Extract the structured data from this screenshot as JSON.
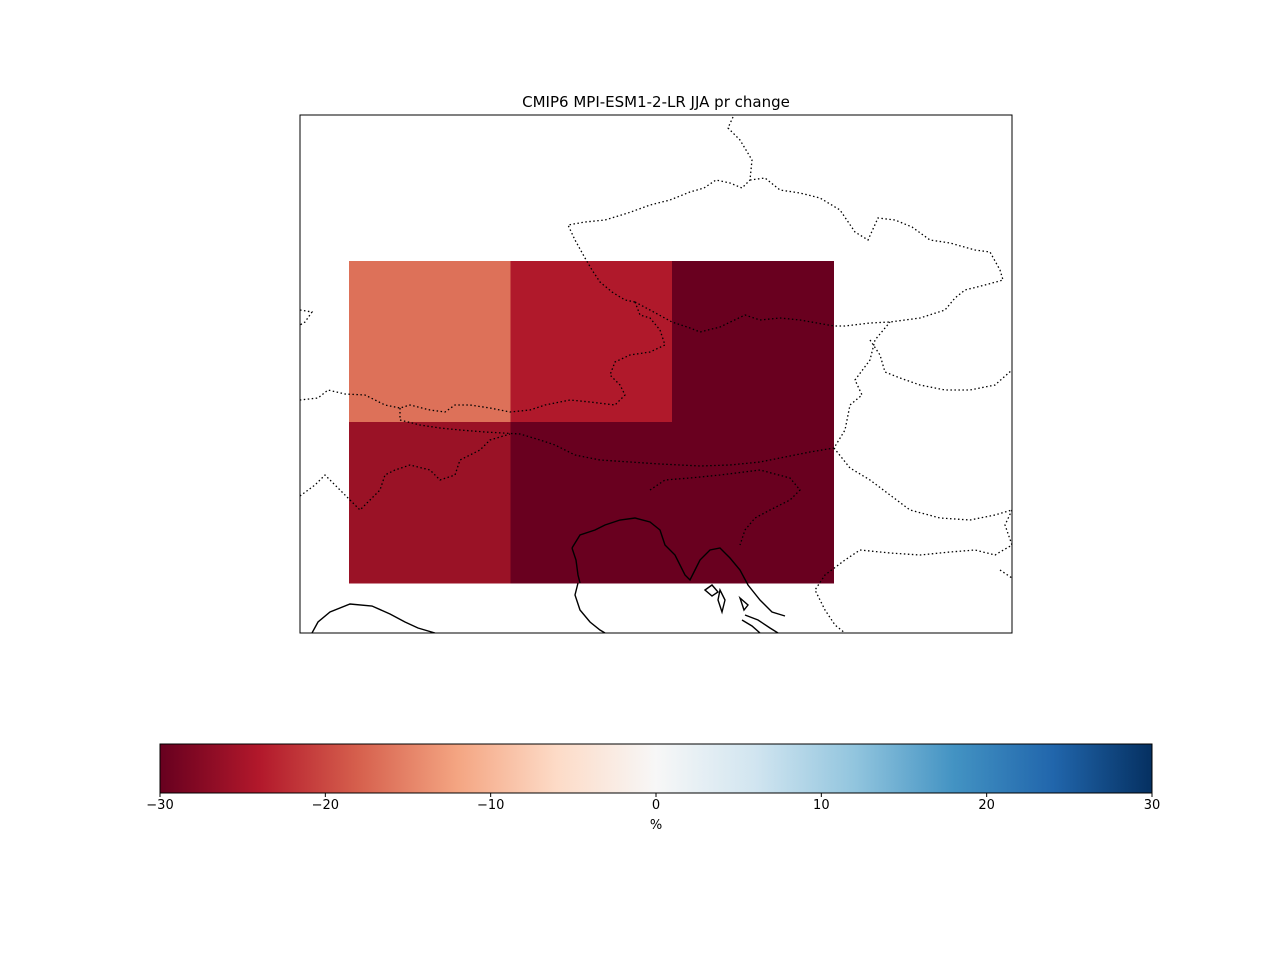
{
  "title": "CMIP6 MPI-ESM1-2-LR JJA pr change",
  "map_grid": {
    "description_units": "%",
    "cells": [
      {
        "row": 0,
        "col": 0,
        "value": -16
      },
      {
        "row": 0,
        "col": 1,
        "value": -24
      },
      {
        "row": 0,
        "col": 2,
        "value": -30
      },
      {
        "row": 1,
        "col": 0,
        "value": -26
      },
      {
        "row": 1,
        "col": 1,
        "value": -30
      },
      {
        "row": 1,
        "col": 2,
        "value": -30
      }
    ],
    "colors": {
      "-16": "#dd7159",
      "-24": "#b0192b",
      "-26": "#9a1226",
      "-30": "#69001f"
    }
  },
  "colorbar": {
    "min": -30,
    "max": 30,
    "ticks": [
      "−30",
      "−20",
      "−10",
      "0",
      "10",
      "20",
      "30"
    ],
    "tick_values": [
      -30,
      -20,
      -10,
      0,
      10,
      20,
      30
    ],
    "label": "%",
    "colormap": "RdBu",
    "color_stops": [
      "#67001f",
      "#b2182b",
      "#d6604d",
      "#f4a582",
      "#fddbc7",
      "#f7f7f7",
      "#d1e5f0",
      "#92c5de",
      "#4393c3",
      "#2166ac",
      "#053061"
    ]
  }
}
